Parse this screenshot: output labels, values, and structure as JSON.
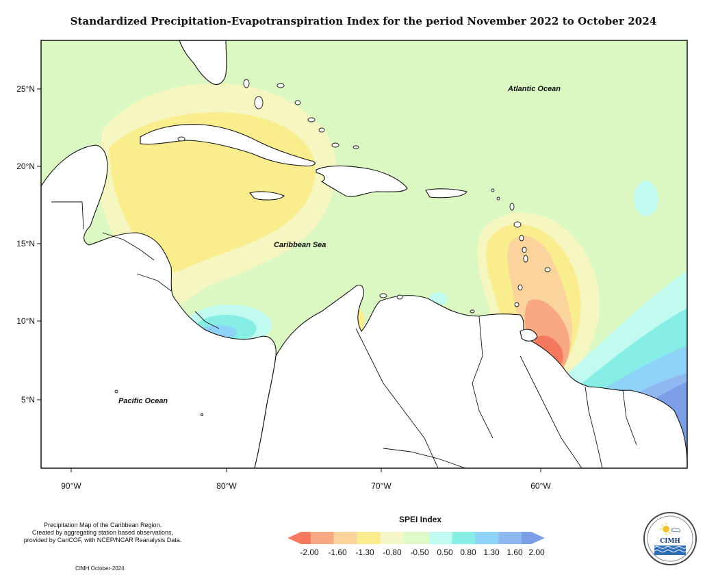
{
  "title": "Standardized Precipitation-Evapotranspiration Index for the period November 2022 to October 2024",
  "map": {
    "lon_labels": [
      "90°W",
      "80°W",
      "70°W",
      "60°W"
    ],
    "lat_labels": [
      "25°N",
      "20°N",
      "15°N",
      "10°N",
      "5°N"
    ],
    "lon_range": [
      -92,
      -50
    ],
    "lat_range": [
      1,
      28
    ],
    "region_labels": {
      "atlantic": "Atlantic Ocean",
      "caribbean": "Caribbean Sea",
      "pacific": "Pacific Ocean"
    }
  },
  "legend": {
    "title": "SPEI Index",
    "ticks": [
      "-2.00",
      "-1.60",
      "-1.30",
      "-0.80",
      "-0.50",
      "0.50",
      "0.80",
      "1.30",
      "1.60",
      "2.00"
    ],
    "colors": [
      "#f4795f",
      "#f8a882",
      "#fbd39c",
      "#f9ec8e",
      "#f4f6c8",
      "#e0f9c8",
      "#c1fbef",
      "#86eee5",
      "#8fd2f8",
      "#8fb8f0",
      "#7c9ee6"
    ]
  },
  "credit": {
    "line1": "Precipitation Map of the Caribbean Region.",
    "line2": "Created by aggregating station based observations,",
    "line3": "provided by CariCOF, with NCEP/NCAR Reanalysis Data.",
    "stamp": "CIMH October-2024"
  },
  "logo": {
    "name": "CIMH",
    "ring_text": "Caribbean Institute for Meteorology and Hydrology"
  }
}
